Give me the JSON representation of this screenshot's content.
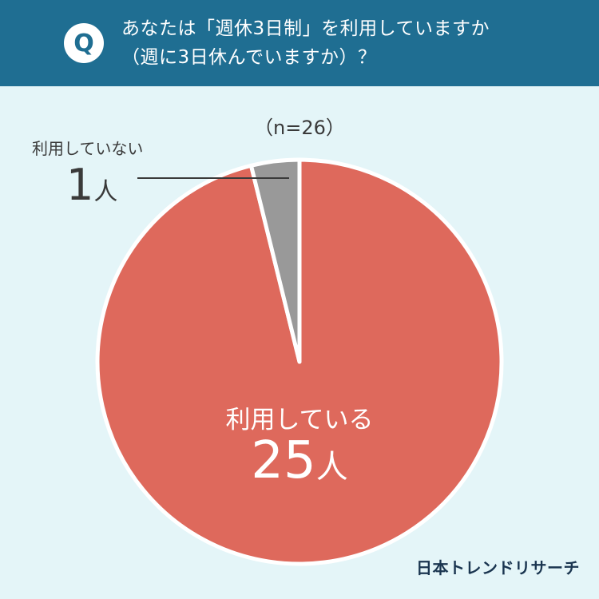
{
  "header": {
    "badge": "Q",
    "question_line1": "あなたは「週休3日制」を利用していますか",
    "question_line2": "（週に3日休んでいますか）？"
  },
  "colors": {
    "header_bg": "#1f6e92",
    "page_bg": "#e4f5f8",
    "slice_using": "#de695c",
    "slice_not_using": "#999999"
  },
  "chart_data": {
    "type": "pie",
    "title": "あなたは「週休3日制」を利用していますか（週に3日休んでいますか）？",
    "sample_size_label": "（n=26）",
    "categories": [
      "利用している",
      "利用していない"
    ],
    "values": [
      25,
      1
    ],
    "units": "人",
    "slices": [
      {
        "label": "利用している",
        "value": 25,
        "count_text": "25",
        "unit": "人",
        "color": "#de695c"
      },
      {
        "label": "利用していない",
        "value": 1,
        "count_text": "1",
        "unit": "人",
        "color": "#999999"
      }
    ]
  },
  "brand": "日本トレンドリサーチ"
}
